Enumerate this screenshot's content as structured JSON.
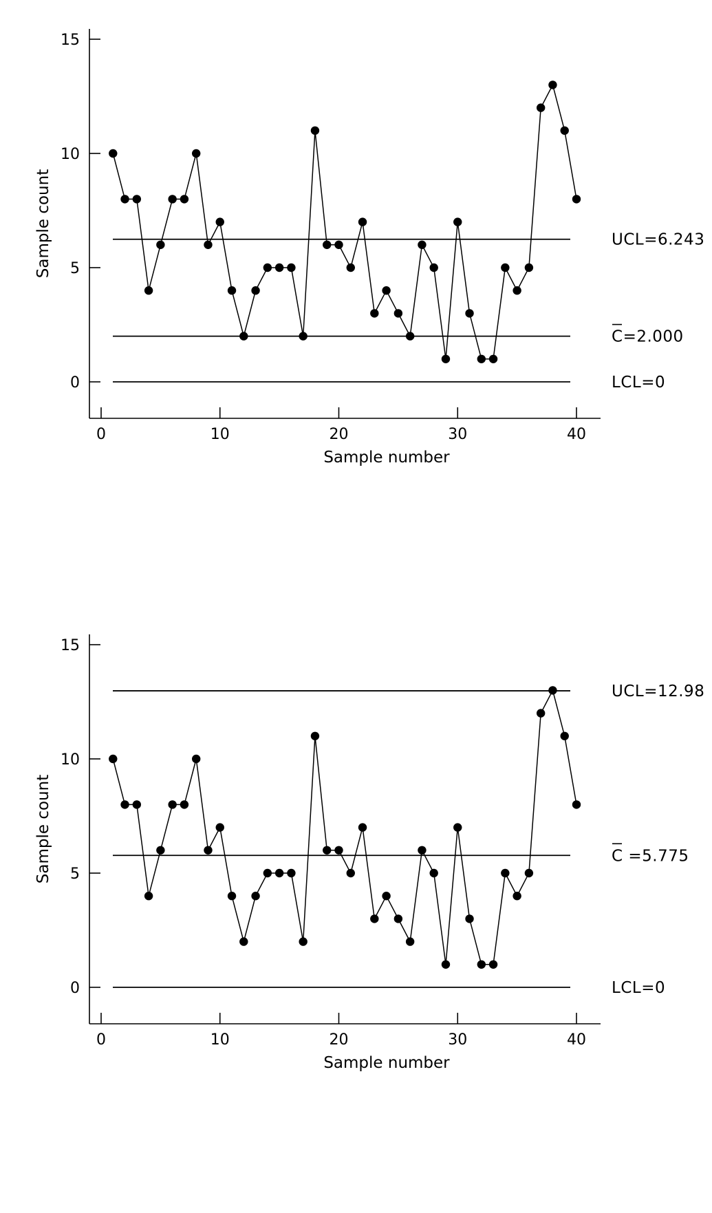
{
  "chart_data": [
    {
      "type": "line",
      "xlabel": "Sample number",
      "ylabel": "Sample count",
      "xlim": [
        -1,
        42
      ],
      "ylim": [
        -1.5,
        15.3
      ],
      "xticks": [
        0,
        10,
        20,
        30,
        40
      ],
      "yticks": [
        0,
        5,
        10,
        15
      ],
      "x": [
        1,
        2,
        3,
        4,
        5,
        6,
        7,
        8,
        9,
        10,
        11,
        12,
        13,
        14,
        15,
        16,
        17,
        18,
        19,
        20,
        21,
        22,
        23,
        24,
        25,
        26,
        27,
        28,
        29,
        30,
        31,
        32,
        33,
        34,
        35,
        36,
        37,
        38,
        39,
        40
      ],
      "values": [
        10,
        8,
        8,
        4,
        6,
        8,
        8,
        10,
        6,
        7,
        4,
        2,
        4,
        5,
        5,
        5,
        2,
        11,
        6,
        6,
        5,
        7,
        3,
        4,
        3,
        2,
        6,
        5,
        1,
        7,
        3,
        1,
        1,
        5,
        4,
        5,
        12,
        13,
        11,
        8
      ],
      "reference_lines": [
        {
          "label": "UCL=6.243",
          "value": 6.243
        },
        {
          "label": "C",
          "suffix": "=2.000",
          "value": 2.0,
          "overbar": true
        },
        {
          "label": "LCL=0",
          "value": 0
        }
      ],
      "grid": false,
      "legend": "none"
    },
    {
      "type": "line",
      "xlabel": "Sample number",
      "ylabel": "Sample count",
      "xlim": [
        -1,
        42
      ],
      "ylim": [
        -1.5,
        15.3
      ],
      "xticks": [
        0,
        10,
        20,
        30,
        40
      ],
      "yticks": [
        0,
        5,
        10,
        15
      ],
      "x": [
        1,
        2,
        3,
        4,
        5,
        6,
        7,
        8,
        9,
        10,
        11,
        12,
        13,
        14,
        15,
        16,
        17,
        18,
        19,
        20,
        21,
        22,
        23,
        24,
        25,
        26,
        27,
        28,
        29,
        30,
        31,
        32,
        33,
        34,
        35,
        36,
        37,
        38,
        39,
        40
      ],
      "values": [
        10,
        8,
        8,
        4,
        6,
        8,
        8,
        10,
        6,
        7,
        4,
        2,
        4,
        5,
        5,
        5,
        2,
        11,
        6,
        6,
        5,
        7,
        3,
        4,
        3,
        2,
        6,
        5,
        1,
        7,
        3,
        1,
        1,
        5,
        4,
        5,
        12,
        13,
        11,
        8
      ],
      "reference_lines": [
        {
          "label": "UCL=12.98",
          "value": 12.98
        },
        {
          "label": "C",
          "suffix": " =5.775",
          "value": 5.775,
          "overbar": true
        },
        {
          "label": "LCL=0",
          "value": 0
        }
      ],
      "grid": false,
      "legend": "none"
    }
  ]
}
